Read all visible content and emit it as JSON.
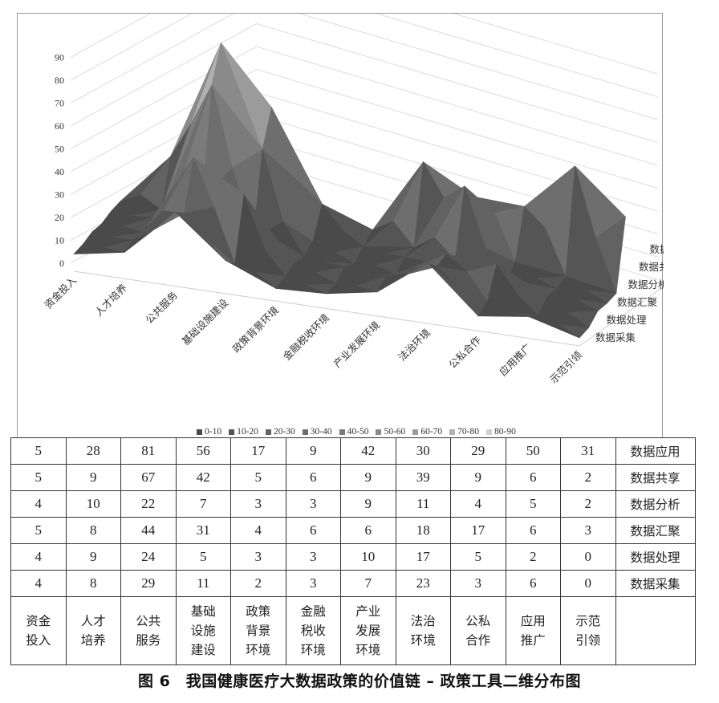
{
  "chart_data": {
    "type": "surface-3d",
    "title": "",
    "xlabel": "",
    "ylabel": "",
    "zlim": [
      0,
      90
    ],
    "z_ticks": [
      0,
      10,
      20,
      30,
      40,
      50,
      60,
      70,
      80,
      90
    ],
    "categories": [
      "资金投入",
      "人才培养",
      "公共服务",
      "基础设施建设",
      "政策背景环境",
      "金融税收环境",
      "产业发展环境",
      "法治环境",
      "公私合作",
      "应用推广",
      "示范引领"
    ],
    "series": [
      {
        "name": "数据采集",
        "values": [
          4,
          8,
          29,
          11,
          2,
          3,
          7,
          23,
          3,
          6,
          0
        ]
      },
      {
        "name": "数据处理",
        "values": [
          4,
          9,
          24,
          5,
          3,
          3,
          10,
          17,
          5,
          2,
          0
        ]
      },
      {
        "name": "数据汇聚",
        "values": [
          5,
          8,
          44,
          31,
          4,
          6,
          6,
          18,
          17,
          6,
          3
        ]
      },
      {
        "name": "数据分析",
        "values": [
          4,
          10,
          22,
          7,
          3,
          3,
          9,
          11,
          4,
          5,
          2
        ]
      },
      {
        "name": "数据共享",
        "values": [
          5,
          9,
          67,
          42,
          5,
          6,
          9,
          39,
          9,
          6,
          2
        ]
      },
      {
        "name": "数据应用",
        "values": [
          5,
          28,
          81,
          56,
          17,
          9,
          42,
          30,
          29,
          50,
          31
        ]
      }
    ],
    "legend": {
      "position": "bottom",
      "entries": [
        "0-10",
        "10-20",
        "20-30",
        "30-40",
        "40-50",
        "50-60",
        "60-70",
        "70-80",
        "80-90"
      ],
      "colors": [
        "#4a4a4a",
        "#555555",
        "#626262",
        "#6e6e6e",
        "#7b7b7b",
        "#8a8a8a",
        "#9b9b9b",
        "#b0b0b0",
        "#cfcfcf"
      ]
    },
    "grid": true
  },
  "table": {
    "rows": [
      {
        "name": "数据应用",
        "values": [
          "5",
          "28",
          "81",
          "56",
          "17",
          "9",
          "42",
          "30",
          "29",
          "50",
          "31"
        ]
      },
      {
        "name": "数据共享",
        "values": [
          "5",
          "9",
          "67",
          "42",
          "5",
          "6",
          "9",
          "39",
          "9",
          "6",
          "2"
        ]
      },
      {
        "name": "数据分析",
        "values": [
          "4",
          "10",
          "22",
          "7",
          "3",
          "3",
          "9",
          "11",
          "4",
          "5",
          "2"
        ]
      },
      {
        "name": "数据汇聚",
        "values": [
          "5",
          "8",
          "44",
          "31",
          "4",
          "6",
          "6",
          "18",
          "17",
          "6",
          "3"
        ]
      },
      {
        "name": "数据处理",
        "values": [
          "4",
          "9",
          "24",
          "5",
          "3",
          "3",
          "10",
          "17",
          "5",
          "2",
          "0"
        ]
      },
      {
        "name": "数据采集",
        "values": [
          "4",
          "8",
          "29",
          "11",
          "2",
          "3",
          "7",
          "23",
          "3",
          "6",
          "0"
        ]
      }
    ],
    "category_cells": [
      [
        "资金",
        "投入"
      ],
      [
        "人才",
        "培养"
      ],
      [
        "公共",
        "服务"
      ],
      [
        "基础",
        "设施",
        "建设"
      ],
      [
        "政策",
        "背景",
        "环境"
      ],
      [
        "金融",
        "税收",
        "环境"
      ],
      [
        "产业",
        "发展",
        "环境"
      ],
      [
        "法治",
        "环境"
      ],
      [
        "公私",
        "合作"
      ],
      [
        "应用",
        "推广"
      ],
      [
        "示范",
        "引领"
      ]
    ]
  },
  "caption": "图 6　我国健康医疗大数据政策的价值链 – 政策工具二维分布图"
}
